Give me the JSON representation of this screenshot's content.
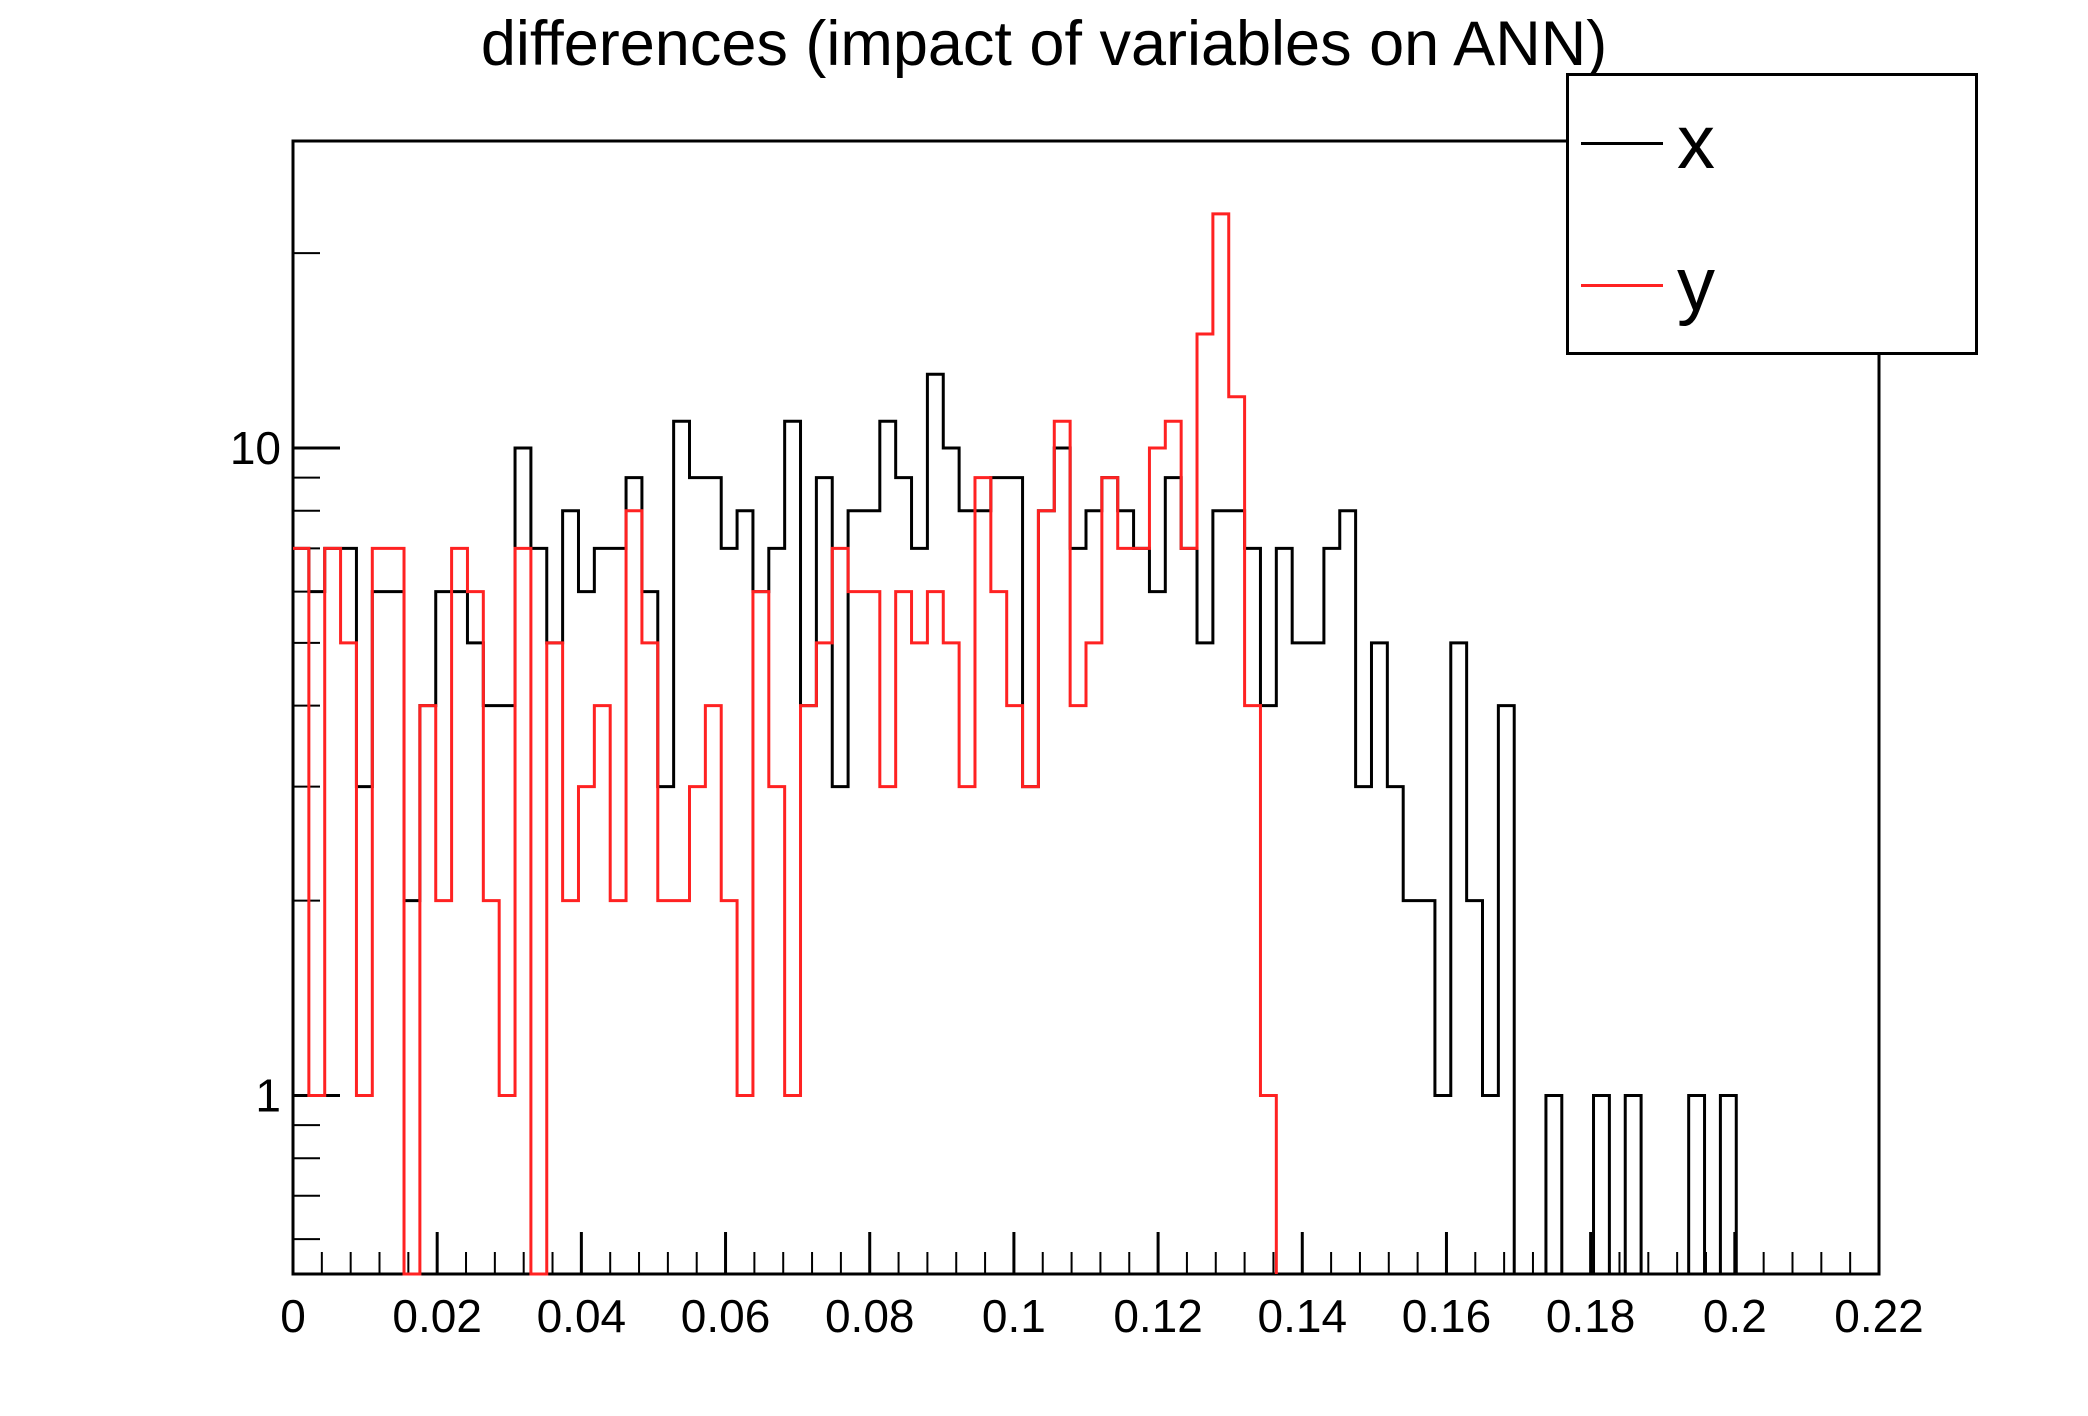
{
  "title": "differences (impact of variables on ANN)",
  "legend": {
    "position": "top-right",
    "entries": [
      {
        "label": "x",
        "color": "#000000"
      },
      {
        "label": "y",
        "color": "#ff2222"
      }
    ]
  },
  "colors": {
    "series_x": "#000000",
    "series_y": "#ff2222",
    "frame": "#000000",
    "background": "#ffffff"
  },
  "chart_data": {
    "type": "line",
    "subtype": "step-histogram",
    "title": "differences (impact of variables on ANN)",
    "xlabel": "",
    "ylabel": "",
    "grid": false,
    "x_axis": {
      "min": 0,
      "max": 0.22,
      "major_tick_step": 0.02,
      "minor_tick_step": 0.004,
      "major_labels": [
        "0",
        "0.02",
        "0.04",
        "0.06",
        "0.08",
        "0.1",
        "0.12",
        "0.14",
        "0.16",
        "0.18",
        "0.2",
        "0.22"
      ]
    },
    "y_axis": {
      "scale": "log",
      "min": 0.53,
      "max": 29.8,
      "major_ticks": [
        1,
        10
      ],
      "major_labels": [
        "1",
        "10"
      ],
      "minor_ticks": [
        0.6,
        0.7,
        0.8,
        0.9,
        2,
        3,
        4,
        5,
        6,
        7,
        8,
        9,
        20
      ]
    },
    "bin_width": 0.0022,
    "bin_start": 0,
    "series": [
      {
        "name": "x",
        "color": "#000000",
        "values": [
          7,
          6,
          7,
          7,
          3,
          6,
          6,
          2,
          4,
          6,
          6,
          5,
          4,
          4,
          10,
          7,
          5,
          8,
          6,
          7,
          7,
          9,
          6,
          3,
          11,
          9,
          9,
          7,
          8,
          6,
          7,
          11,
          4,
          9,
          3,
          8,
          8,
          11,
          9,
          7,
          13,
          10,
          8,
          8,
          9,
          9,
          3,
          8,
          10,
          7,
          8,
          9,
          8,
          7,
          6,
          9,
          7,
          5,
          8,
          8,
          7,
          4,
          7,
          5,
          5,
          7,
          8,
          3,
          5,
          3,
          2,
          2,
          1,
          5,
          2,
          1,
          4,
          0,
          0,
          1,
          0,
          0,
          1,
          0,
          1,
          0,
          0,
          0,
          1,
          0,
          1,
          0,
          0,
          0,
          0,
          0,
          0,
          0,
          0,
          0
        ]
      },
      {
        "name": "y",
        "color": "#ff2222",
        "values": [
          7,
          1,
          7,
          5,
          1,
          7,
          7,
          0,
          4,
          2,
          7,
          6,
          2,
          1,
          7,
          0,
          5,
          2,
          3,
          4,
          2,
          8,
          5,
          2,
          2,
          3,
          4,
          2,
          1,
          6,
          3,
          1,
          4,
          5,
          7,
          6,
          6,
          3,
          6,
          5,
          6,
          5,
          3,
          9,
          6,
          4,
          3,
          8,
          11,
          4,
          5,
          9,
          7,
          7,
          10,
          11,
          7,
          15,
          23,
          12,
          4,
          1
        ],
        "ends_with_drop_to_zero": true
      }
    ]
  }
}
